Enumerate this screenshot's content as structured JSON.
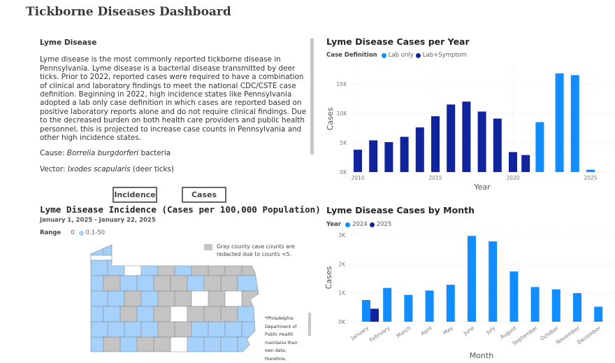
{
  "title": "Tickborne Diseases Dashboard",
  "info": {
    "heading": "Lyme Disease",
    "paragraph": "Lyme disease is the most commonly reported tickborne disease in Pennsylvania. Lyme disease is a bacterial disease transmitted by deer ticks. Prior to 2022, reported cases were required to have a combination of clinical and laboratory findings to meet the national CDC/CSTE case definition. Beginning in 2022, high incidence states like Pennsylvania adopted a lab only case definition in which cases are reported based on positive laboratory reports alone and do not require clinical findings. Due to the decreased burden on both health care providers and public health personnel, this is projected to increase case counts in Pennsylvania and other high incidence states.",
    "cause_label": "Cause: ",
    "cause_value": "Borrelia burgdorferi",
    "cause_suffix": " bacteria",
    "vector_label": "Vector: ",
    "vector_value": "Ixodes scapularis",
    "vector_suffix": " (deer ticks)"
  },
  "buttons": {
    "incidence": "Incidence",
    "cases": "Cases"
  },
  "map": {
    "title": "Lyme Disease Incidence (Cases per 100,000 Population)",
    "date_range": "January 1, 2025 - January 22, 2025",
    "legend_label": "Range",
    "legend_zero": "0",
    "legend_range": "0.1-50",
    "gray_note": "Gray county case counts are redacted due to counts <5.",
    "philly_note": "*Philadelphia Department of Public Health maintains their own data, therefore,",
    "colors": {
      "blue": "#a6d1fb",
      "gray": "#c4c4c4",
      "white": "#ffffff"
    }
  },
  "chart_data": [
    {
      "type": "bar",
      "title": "Lyme Disease Cases per Year",
      "legend_title": "Case Definition",
      "legend": [
        {
          "name": "Lab only",
          "color": "#118dff"
        },
        {
          "name": "Lab+Symptom",
          "color": "#12239e"
        }
      ],
      "xlabel": "Year",
      "ylabel": "Cases",
      "ylim": [
        0,
        17500
      ],
      "yticks": [
        {
          "v": 0,
          "label": "0K"
        },
        {
          "v": 5000,
          "label": "5K"
        },
        {
          "v": 10000,
          "label": "10K"
        },
        {
          "v": 15000,
          "label": "15K"
        }
      ],
      "xticks": [
        2010,
        2015,
        2020,
        2025
      ],
      "x": [
        2010,
        2011,
        2012,
        2013,
        2014,
        2015,
        2016,
        2017,
        2018,
        2019,
        2020,
        2021,
        2022,
        2023,
        2024,
        2025
      ],
      "series": [
        {
          "name": "Lab+Symptom",
          "values": [
            3800,
            5400,
            5100,
            6000,
            7600,
            9500,
            11500,
            12000,
            10300,
            9100,
            3400,
            2900,
            null,
            null,
            null,
            null
          ]
        },
        {
          "name": "Lab only",
          "values": [
            null,
            null,
            null,
            null,
            null,
            null,
            null,
            null,
            null,
            null,
            null,
            null,
            8500,
            16800,
            16500,
            400
          ]
        }
      ]
    },
    {
      "type": "bar",
      "title": "Lyme Disease Cases by Month",
      "legend_title": "Year",
      "legend": [
        {
          "name": "2024",
          "color": "#118dff"
        },
        {
          "name": "2025",
          "color": "#12239e"
        }
      ],
      "xlabel": "Month",
      "ylabel": "Cases",
      "ylim": [
        0,
        3000
      ],
      "yticks": [
        {
          "v": 0,
          "label": "0K"
        },
        {
          "v": 1000,
          "label": "1K"
        },
        {
          "v": 2000,
          "label": "2K"
        },
        {
          "v": 3000,
          "label": "3K"
        }
      ],
      "categories": [
        "January",
        "February",
        "March",
        "April",
        "May",
        "June",
        "July",
        "August",
        "September",
        "October",
        "November",
        "December"
      ],
      "series": [
        {
          "name": "2024",
          "values": [
            750,
            1170,
            930,
            1080,
            1280,
            2970,
            2780,
            1740,
            1200,
            1120,
            990,
            520
          ]
        },
        {
          "name": "2025",
          "values": [
            450,
            null,
            null,
            null,
            null,
            null,
            null,
            null,
            null,
            null,
            null,
            null
          ]
        }
      ]
    }
  ]
}
